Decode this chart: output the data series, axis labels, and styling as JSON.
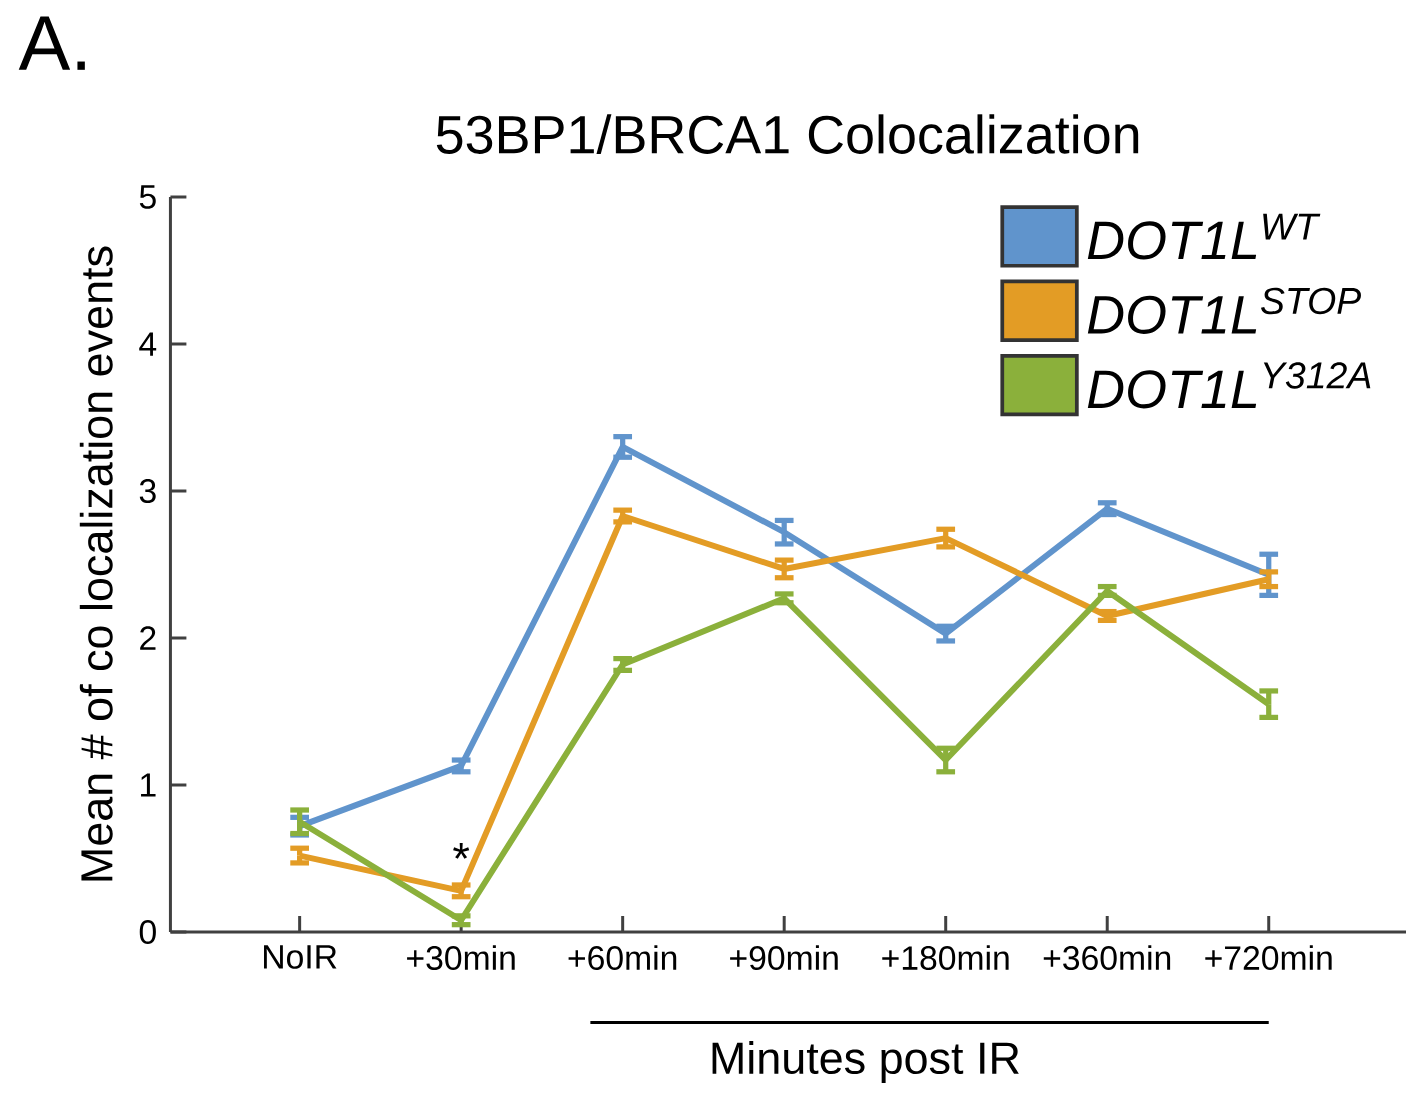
{
  "chart_data": {
    "type": "line",
    "title": "53BP1/BRCA1 Colocalization",
    "xlabel": "Minutes post IR",
    "ylabel": "Mean # of co localization events",
    "categories": [
      "NoIR",
      "+30min",
      "+60min",
      "+90min",
      "+180min",
      "+360min",
      "+720min"
    ],
    "series": [
      {
        "name": "DOT1L$^{WT}$",
        "color": "#6094cc",
        "values": [
          0.72,
          1.13,
          3.3,
          2.72,
          2.03,
          2.88,
          2.43
        ],
        "errors": [
          0.06,
          0.04,
          0.07,
          0.08,
          0.05,
          0.04,
          0.14
        ]
      },
      {
        "name": "DOT1L$^{STOP}$",
        "color": "#e39c25",
        "values": [
          0.52,
          0.28,
          2.83,
          2.47,
          2.68,
          2.15,
          2.4
        ],
        "errors": [
          0.05,
          0.04,
          0.04,
          0.06,
          0.06,
          0.03,
          0.05
        ]
      },
      {
        "name": "DOT1L$^{Y312A}$",
        "color": "#8bb03b",
        "values": [
          0.75,
          0.08,
          1.82,
          2.27,
          1.17,
          2.32,
          1.55
        ],
        "errors": [
          0.08,
          0.03,
          0.04,
          0.03,
          0.08,
          0.03,
          0.09
        ]
      }
    ],
    "ylim": [
      0,
      5
    ],
    "yticks": [
      0,
      1,
      2,
      3,
      4,
      5
    ],
    "legend": "top right",
    "marker": "none",
    "line_style": "solid",
    "annotations": [
      "A.",
      {
        "text": "*",
        "x": "+30min",
        "y": 0.5
      }
    ]
  }
}
